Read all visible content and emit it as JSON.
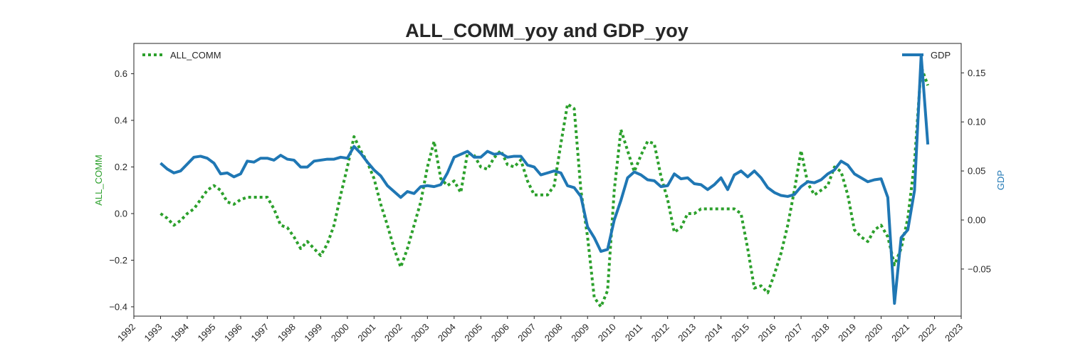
{
  "chart_data": {
    "type": "line",
    "title": "ALL_COMM_yoy and GDP_yoy",
    "xlabel": "",
    "x_ticks": [
      "1992",
      "1993",
      "1994",
      "1995",
      "1996",
      "1997",
      "1998",
      "1999",
      "2000",
      "2001",
      "2002",
      "2003",
      "2004",
      "2005",
      "2006",
      "2007",
      "2008",
      "2009",
      "2010",
      "2011",
      "2012",
      "2013",
      "2014",
      "2015",
      "2016",
      "2017",
      "2018",
      "2019",
      "2020",
      "2021",
      "2022",
      "2023"
    ],
    "xlim": [
      1992,
      2023
    ],
    "grid": false,
    "colors": {
      "all_comm": "#2ca02c",
      "gdp": "#1f77b4",
      "text": "#262626",
      "frame": "#262626"
    },
    "left_axis": {
      "label": "ALL_COMM",
      "ylim": [
        -0.44,
        0.73
      ],
      "ticks": [
        -0.4,
        -0.2,
        0.0,
        0.2,
        0.4,
        0.6
      ],
      "tick_labels": [
        "−0.4",
        "−0.2",
        "0.0",
        "0.2",
        "0.4",
        "0.6"
      ]
    },
    "right_axis": {
      "label": "GDP",
      "ylim": [
        -0.098,
        0.18
      ],
      "ticks": [
        -0.05,
        0.0,
        0.05,
        0.1,
        0.15
      ],
      "tick_labels": [
        "−0.05",
        "0.00",
        "0.05",
        "0.10",
        "0.15"
      ]
    },
    "legends": [
      {
        "label": "ALL_COMM",
        "placement": "top-left",
        "style": "dotted"
      },
      {
        "label": "GDP",
        "placement": "top-right",
        "style": "solid"
      }
    ],
    "series": [
      {
        "name": "ALL_COMM",
        "axis": "left",
        "style": "dotted",
        "points": [
          [
            1993.0,
            0.0
          ],
          [
            1993.25,
            -0.02
          ],
          [
            1993.5,
            -0.05
          ],
          [
            1993.75,
            -0.03
          ],
          [
            1994.0,
            -0.0
          ],
          [
            1994.25,
            0.02
          ],
          [
            1994.5,
            0.06
          ],
          [
            1994.75,
            0.1
          ],
          [
            1995.0,
            0.12
          ],
          [
            1995.25,
            0.1
          ],
          [
            1995.5,
            0.05
          ],
          [
            1995.75,
            0.04
          ],
          [
            1996.0,
            0.06
          ],
          [
            1996.25,
            0.07
          ],
          [
            1996.5,
            0.07
          ],
          [
            1996.75,
            0.07
          ],
          [
            1997.0,
            0.07
          ],
          [
            1997.25,
            0.02
          ],
          [
            1997.5,
            -0.05
          ],
          [
            1997.75,
            -0.06
          ],
          [
            1998.0,
            -0.1
          ],
          [
            1998.25,
            -0.15
          ],
          [
            1998.5,
            -0.12
          ],
          [
            1998.75,
            -0.15
          ],
          [
            1999.0,
            -0.18
          ],
          [
            1999.25,
            -0.13
          ],
          [
            1999.5,
            -0.05
          ],
          [
            1999.75,
            0.08
          ],
          [
            2000.0,
            0.2
          ],
          [
            2000.25,
            0.33
          ],
          [
            2000.5,
            0.27
          ],
          [
            2000.75,
            0.22
          ],
          [
            2001.0,
            0.15
          ],
          [
            2001.25,
            0.04
          ],
          [
            2001.5,
            -0.05
          ],
          [
            2001.75,
            -0.15
          ],
          [
            2002.0,
            -0.23
          ],
          [
            2002.25,
            -0.15
          ],
          [
            2002.5,
            -0.05
          ],
          [
            2002.75,
            0.05
          ],
          [
            2003.0,
            0.2
          ],
          [
            2003.25,
            0.31
          ],
          [
            2003.5,
            0.15
          ],
          [
            2003.75,
            0.12
          ],
          [
            2004.0,
            0.14
          ],
          [
            2004.25,
            0.09
          ],
          [
            2004.5,
            0.26
          ],
          [
            2004.75,
            0.25
          ],
          [
            2005.0,
            0.2
          ],
          [
            2005.25,
            0.19
          ],
          [
            2005.5,
            0.24
          ],
          [
            2005.75,
            0.27
          ],
          [
            2006.0,
            0.21
          ],
          [
            2006.25,
            0.2
          ],
          [
            2006.5,
            0.23
          ],
          [
            2006.75,
            0.14
          ],
          [
            2007.0,
            0.08
          ],
          [
            2007.25,
            0.08
          ],
          [
            2007.5,
            0.08
          ],
          [
            2007.75,
            0.12
          ],
          [
            2008.0,
            0.3
          ],
          [
            2008.25,
            0.47
          ],
          [
            2008.5,
            0.45
          ],
          [
            2008.75,
            0.1
          ],
          [
            2009.0,
            -0.1
          ],
          [
            2009.25,
            -0.36
          ],
          [
            2009.5,
            -0.4
          ],
          [
            2009.75,
            -0.33
          ],
          [
            2010.0,
            0.1
          ],
          [
            2010.25,
            0.36
          ],
          [
            2010.5,
            0.27
          ],
          [
            2010.75,
            0.18
          ],
          [
            2011.0,
            0.25
          ],
          [
            2011.25,
            0.31
          ],
          [
            2011.5,
            0.3
          ],
          [
            2011.75,
            0.16
          ],
          [
            2012.0,
            0.06
          ],
          [
            2012.25,
            -0.08
          ],
          [
            2012.5,
            -0.06
          ],
          [
            2012.75,
            0.0
          ],
          [
            2013.0,
            0.0
          ],
          [
            2013.25,
            0.02
          ],
          [
            2013.5,
            0.02
          ],
          [
            2013.75,
            0.02
          ],
          [
            2014.0,
            0.02
          ],
          [
            2014.25,
            0.02
          ],
          [
            2014.5,
            0.02
          ],
          [
            2014.75,
            0.0
          ],
          [
            2015.0,
            -0.15
          ],
          [
            2015.25,
            -0.32
          ],
          [
            2015.5,
            -0.31
          ],
          [
            2015.75,
            -0.34
          ],
          [
            2016.0,
            -0.26
          ],
          [
            2016.25,
            -0.17
          ],
          [
            2016.5,
            -0.05
          ],
          [
            2016.75,
            0.1
          ],
          [
            2017.0,
            0.27
          ],
          [
            2017.25,
            0.13
          ],
          [
            2017.5,
            0.08
          ],
          [
            2017.75,
            0.1
          ],
          [
            2018.0,
            0.12
          ],
          [
            2018.25,
            0.2
          ],
          [
            2018.5,
            0.18
          ],
          [
            2018.75,
            0.08
          ],
          [
            2019.0,
            -0.07
          ],
          [
            2019.25,
            -0.1
          ],
          [
            2019.5,
            -0.12
          ],
          [
            2019.75,
            -0.07
          ],
          [
            2020.0,
            -0.05
          ],
          [
            2020.25,
            -0.1
          ],
          [
            2020.5,
            -0.22
          ],
          [
            2020.75,
            -0.15
          ],
          [
            2021.0,
            -0.02
          ],
          [
            2021.25,
            0.22
          ],
          [
            2021.5,
            0.63
          ],
          [
            2021.75,
            0.55
          ]
        ]
      },
      {
        "name": "GDP",
        "axis": "right",
        "style": "solid",
        "points": [
          [
            1993.0,
            0.058
          ],
          [
            1993.25,
            0.052
          ],
          [
            1993.5,
            0.048
          ],
          [
            1993.75,
            0.05
          ],
          [
            1994.0,
            0.057
          ],
          [
            1994.25,
            0.064
          ],
          [
            1994.5,
            0.065
          ],
          [
            1994.75,
            0.063
          ],
          [
            1995.0,
            0.058
          ],
          [
            1995.25,
            0.047
          ],
          [
            1995.5,
            0.048
          ],
          [
            1995.75,
            0.044
          ],
          [
            1996.0,
            0.047
          ],
          [
            1996.25,
            0.06
          ],
          [
            1996.5,
            0.059
          ],
          [
            1996.75,
            0.063
          ],
          [
            1997.0,
            0.063
          ],
          [
            1997.25,
            0.061
          ],
          [
            1997.5,
            0.066
          ],
          [
            1997.75,
            0.062
          ],
          [
            1998.0,
            0.061
          ],
          [
            1998.25,
            0.054
          ],
          [
            1998.5,
            0.054
          ],
          [
            1998.75,
            0.06
          ],
          [
            1999.0,
            0.061
          ],
          [
            1999.25,
            0.062
          ],
          [
            1999.5,
            0.062
          ],
          [
            1999.75,
            0.064
          ],
          [
            2000.0,
            0.063
          ],
          [
            2000.25,
            0.075
          ],
          [
            2000.5,
            0.068
          ],
          [
            2000.75,
            0.059
          ],
          [
            2001.0,
            0.051
          ],
          [
            2001.25,
            0.045
          ],
          [
            2001.5,
            0.035
          ],
          [
            2001.75,
            0.029
          ],
          [
            2002.0,
            0.023
          ],
          [
            2002.25,
            0.029
          ],
          [
            2002.5,
            0.027
          ],
          [
            2002.75,
            0.034
          ],
          [
            2003.0,
            0.035
          ],
          [
            2003.25,
            0.034
          ],
          [
            2003.5,
            0.036
          ],
          [
            2003.75,
            0.048
          ],
          [
            2004.0,
            0.064
          ],
          [
            2004.25,
            0.067
          ],
          [
            2004.5,
            0.07
          ],
          [
            2004.75,
            0.064
          ],
          [
            2005.0,
            0.064
          ],
          [
            2005.25,
            0.07
          ],
          [
            2005.5,
            0.067
          ],
          [
            2005.75,
            0.068
          ],
          [
            2006.0,
            0.064
          ],
          [
            2006.25,
            0.065
          ],
          [
            2006.5,
            0.065
          ],
          [
            2006.75,
            0.056
          ],
          [
            2007.0,
            0.054
          ],
          [
            2007.25,
            0.046
          ],
          [
            2007.5,
            0.048
          ],
          [
            2007.75,
            0.05
          ],
          [
            2008.0,
            0.048
          ],
          [
            2008.25,
            0.035
          ],
          [
            2008.5,
            0.033
          ],
          [
            2008.75,
            0.024
          ],
          [
            2009.0,
            -0.007
          ],
          [
            2009.25,
            -0.018
          ],
          [
            2009.5,
            -0.032
          ],
          [
            2009.75,
            -0.03
          ],
          [
            2010.0,
            0.0
          ],
          [
            2010.25,
            0.02
          ],
          [
            2010.5,
            0.043
          ],
          [
            2010.75,
            0.049
          ],
          [
            2011.0,
            0.046
          ],
          [
            2011.25,
            0.041
          ],
          [
            2011.5,
            0.04
          ],
          [
            2011.75,
            0.034
          ],
          [
            2012.0,
            0.035
          ],
          [
            2012.25,
            0.047
          ],
          [
            2012.5,
            0.042
          ],
          [
            2012.75,
            0.043
          ],
          [
            2013.0,
            0.037
          ],
          [
            2013.25,
            0.036
          ],
          [
            2013.5,
            0.031
          ],
          [
            2013.75,
            0.036
          ],
          [
            2014.0,
            0.043
          ],
          [
            2014.25,
            0.031
          ],
          [
            2014.5,
            0.046
          ],
          [
            2014.75,
            0.05
          ],
          [
            2015.0,
            0.044
          ],
          [
            2015.25,
            0.05
          ],
          [
            2015.5,
            0.043
          ],
          [
            2015.75,
            0.033
          ],
          [
            2016.0,
            0.028
          ],
          [
            2016.25,
            0.025
          ],
          [
            2016.5,
            0.024
          ],
          [
            2016.75,
            0.026
          ],
          [
            2017.0,
            0.034
          ],
          [
            2017.25,
            0.039
          ],
          [
            2017.5,
            0.038
          ],
          [
            2017.75,
            0.041
          ],
          [
            2018.0,
            0.047
          ],
          [
            2018.25,
            0.051
          ],
          [
            2018.5,
            0.06
          ],
          [
            2018.75,
            0.056
          ],
          [
            2019.0,
            0.047
          ],
          [
            2019.25,
            0.043
          ],
          [
            2019.5,
            0.039
          ],
          [
            2019.75,
            0.041
          ],
          [
            2020.0,
            0.042
          ],
          [
            2020.25,
            0.023
          ],
          [
            2020.5,
            -0.085
          ],
          [
            2020.75,
            -0.018
          ],
          [
            2021.0,
            -0.01
          ],
          [
            2021.25,
            0.03
          ],
          [
            2021.5,
            0.168
          ],
          [
            2021.75,
            0.077
          ]
        ]
      }
    ]
  }
}
